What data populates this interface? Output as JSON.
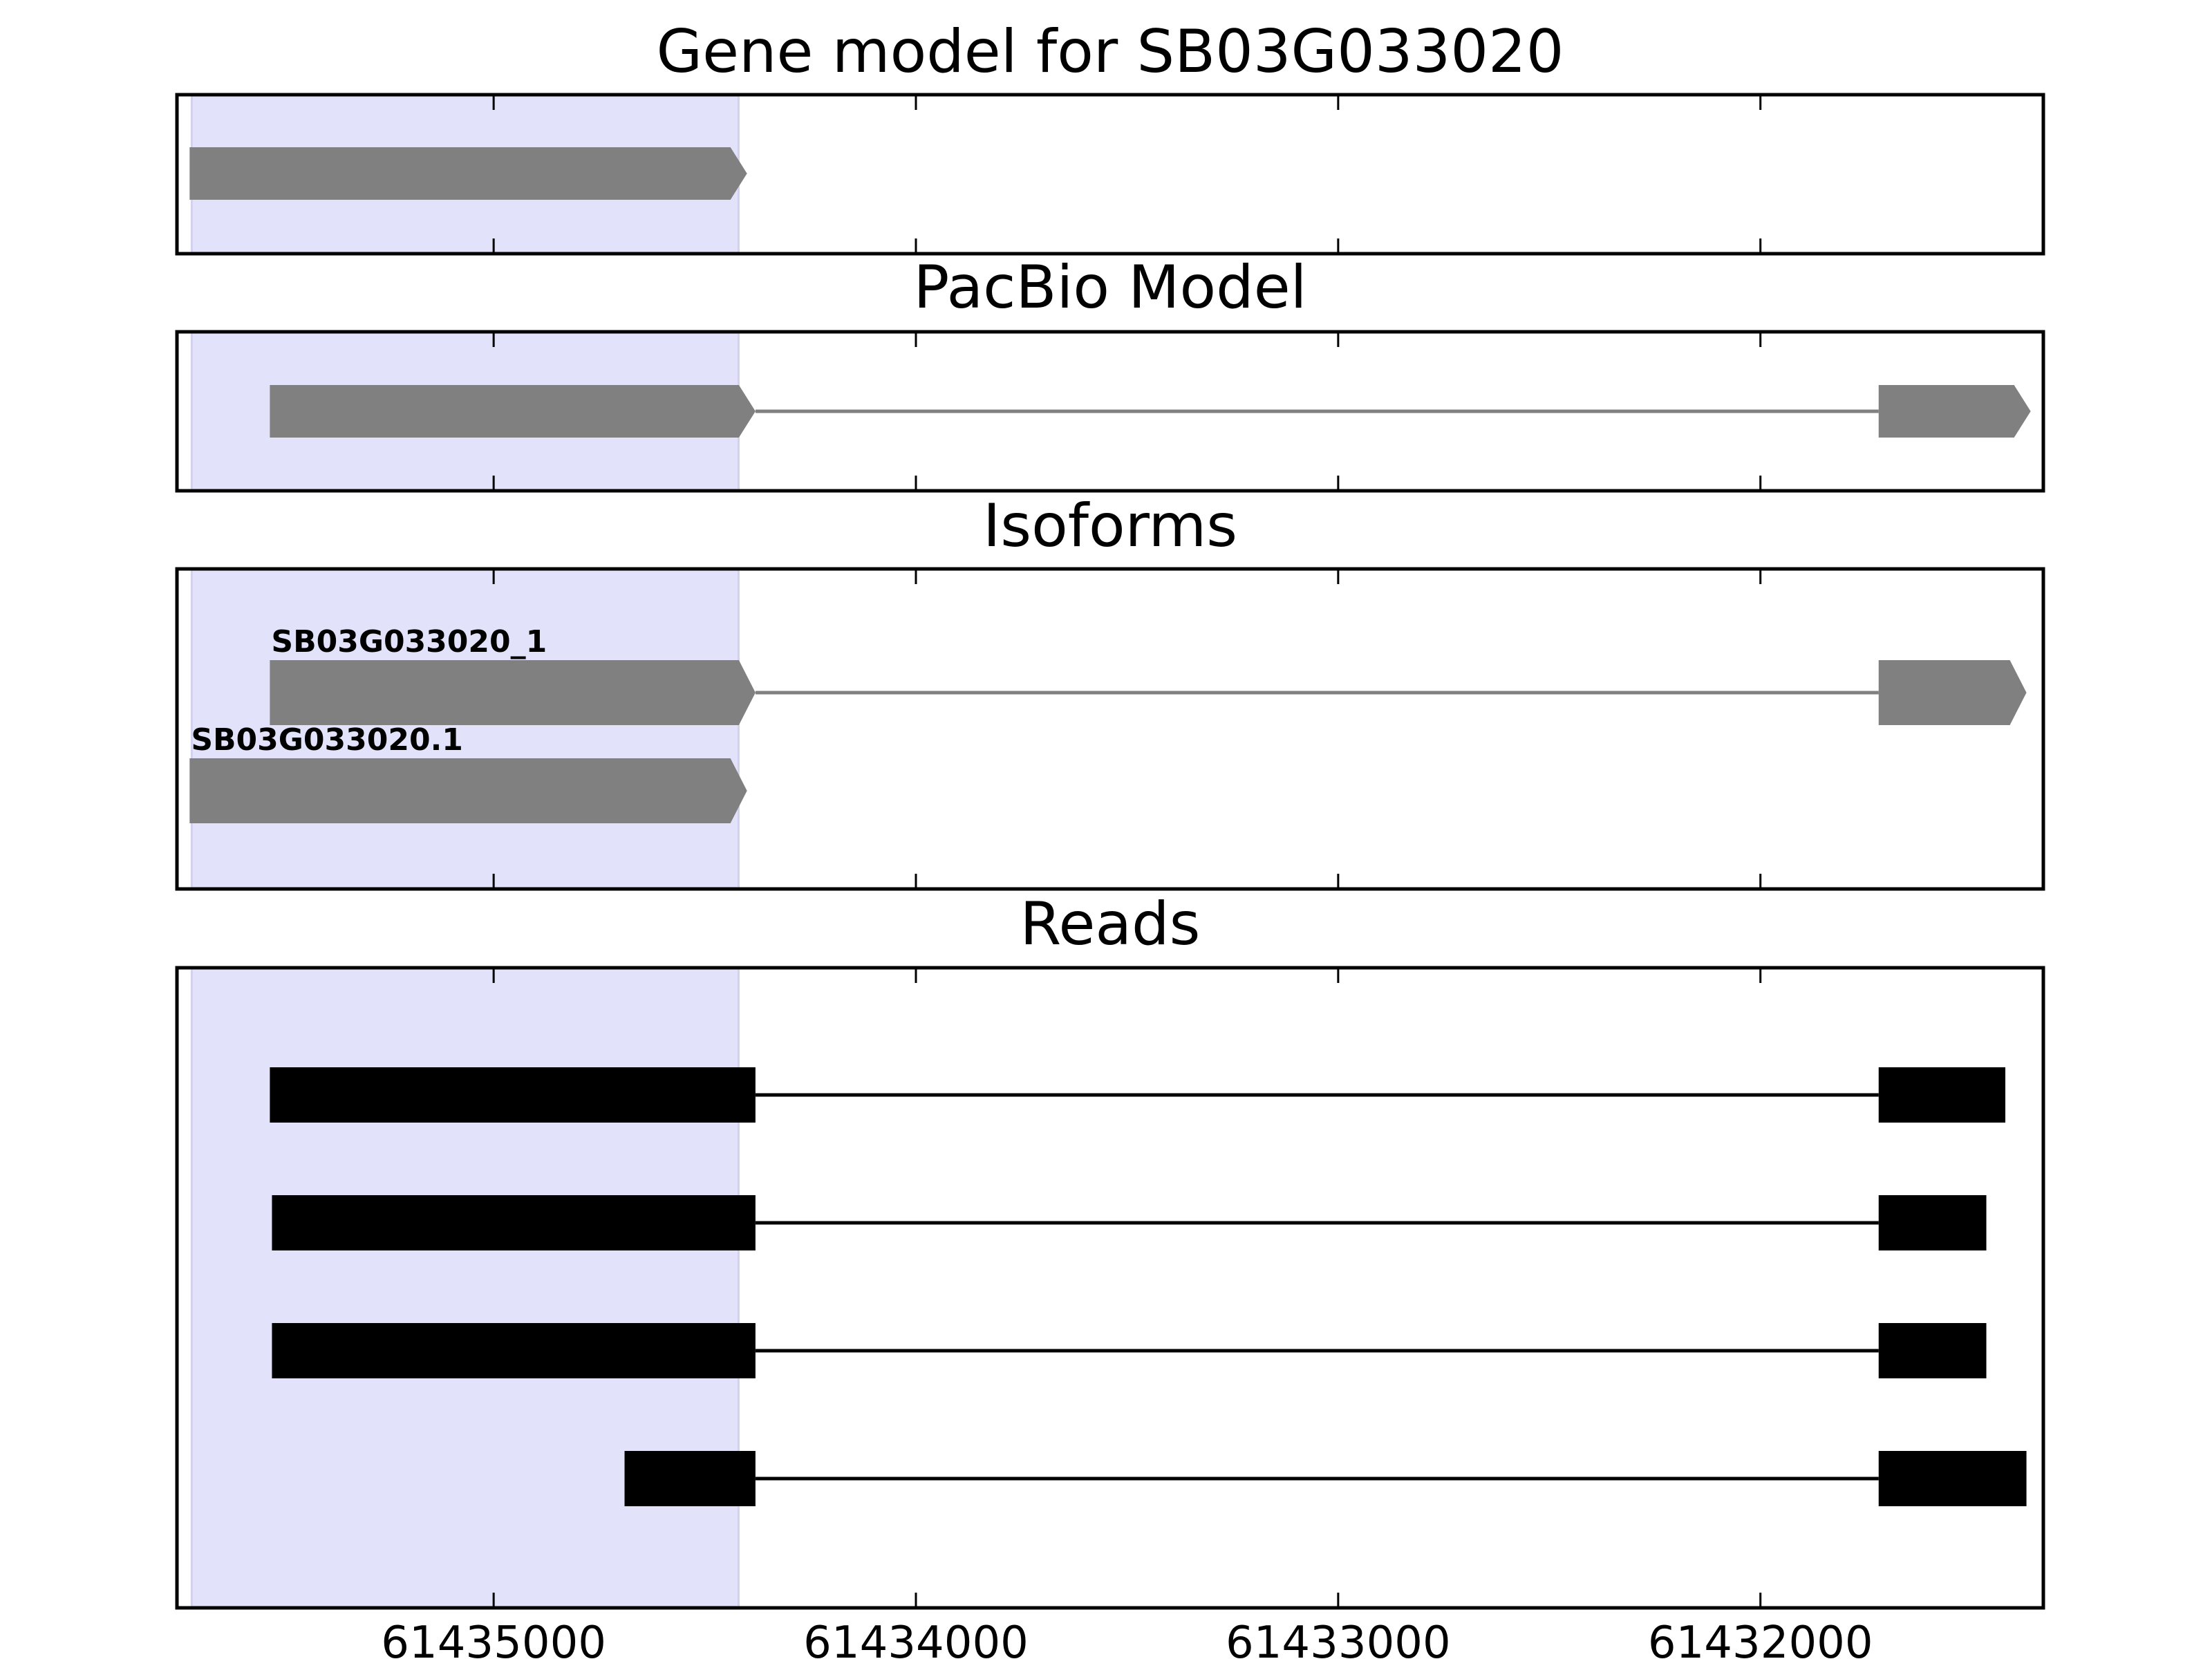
{
  "chart_data": {
    "type": "gene-structure",
    "title": "Gene model for SB03G033020",
    "x_axis": {
      "reversed": true,
      "xlim": [
        61435750,
        61431330
      ],
      "ticks": [
        61435000,
        61434000,
        61433000,
        61432000
      ],
      "tick_labels": [
        "61435000",
        "61434000",
        "61433000",
        "61432000"
      ]
    },
    "highlight_region": {
      "start": 61435715,
      "end": 61434420,
      "color": "#e2e2fb"
    },
    "colors": {
      "model": "#808080",
      "reads": "#000000",
      "frame": "#000000"
    },
    "panels": [
      {
        "id": "gene-model",
        "title": "Gene model for SB03G033020",
        "tracks": [
          {
            "label": "",
            "exons": [
              [
                61435720,
                61434400
              ]
            ],
            "arrow": true
          }
        ]
      },
      {
        "id": "pacbio-model",
        "title": "PacBio Model",
        "tracks": [
          {
            "label": "",
            "exons": [
              [
                61435530,
                61434380
              ],
              [
                61431720,
                61431360
              ]
            ],
            "arrow": true
          }
        ]
      },
      {
        "id": "isoforms",
        "title": "Isoforms",
        "tracks": [
          {
            "label": "SB03G033020_1",
            "exons": [
              [
                61435530,
                61434380
              ],
              [
                61431720,
                61431370
              ]
            ],
            "arrow": true
          },
          {
            "label": "SB03G033020.1",
            "exons": [
              [
                61435720,
                61434400
              ]
            ],
            "arrow": true
          }
        ]
      },
      {
        "id": "reads",
        "title": "Reads",
        "tracks": [
          {
            "label": "",
            "exons": [
              [
                61435530,
                61434380
              ],
              [
                61431720,
                61431420
              ]
            ],
            "arrow": false
          },
          {
            "label": "",
            "exons": [
              [
                61435525,
                61434380
              ],
              [
                61431720,
                61431465
              ]
            ],
            "arrow": false
          },
          {
            "label": "",
            "exons": [
              [
                61435525,
                61434380
              ],
              [
                61431720,
                61431465
              ]
            ],
            "arrow": false
          },
          {
            "label": "",
            "exons": [
              [
                61434690,
                61434380
              ],
              [
                61431720,
                61431370
              ]
            ],
            "arrow": false
          }
        ]
      }
    ]
  }
}
